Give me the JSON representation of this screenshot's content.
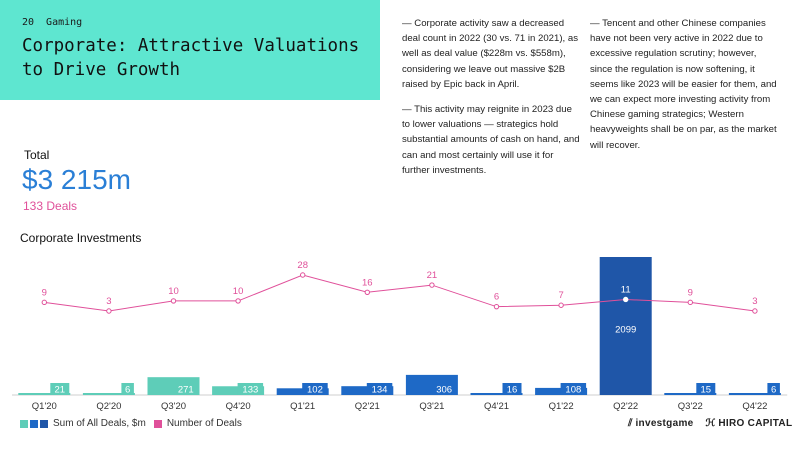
{
  "page": {
    "number": "20",
    "section": "Gaming"
  },
  "title": "Corporate: Attractive Valuations to Drive Growth",
  "notes": {
    "col1": [
      "— Corporate activity saw a decreased deal count in 2022 (30 vs. 71 in 2021), as well as deal value ($228m vs. $558m), considering we leave out massive $2B raised by Epic back in April.",
      "— This activity may reignite in 2023 due to lower valuations — strategics hold substantial amounts of cash on hand, and can and most certainly will use it for further investments."
    ],
    "col2": [
      "— Tencent and other Chinese companies have not been very active in 2022 due to excessive regulation scrutiny; however, since the regulation is now softening, it seems like 2023 will be easier for them, and we can expect more investing activity from Chinese gaming strategics; Western heavyweights shall be on par, as the market will recover."
    ]
  },
  "total": {
    "label": "Total",
    "value": "$3 215m",
    "deals": "133 Deals"
  },
  "chart_title": "Corporate Investments",
  "legend": {
    "bars_label": "Sum of All Deals, $m",
    "line_label": "Number of Deals"
  },
  "colors": {
    "header_bg": "#5ee6d0",
    "total_value": "#2a7fd6",
    "deals_pink": "#e0509a",
    "bar_2020": "#5ecdb8",
    "bar_2021_2022": "#1e69c6",
    "bar_highlight": "#1f56a8"
  },
  "logos": {
    "left": "investgame",
    "right": "HIRO CAPITAL"
  },
  "chart_data": {
    "type": "bar",
    "categories": [
      "Q1'20",
      "Q2'20",
      "Q3'20",
      "Q4'20",
      "Q1'21",
      "Q2'21",
      "Q3'21",
      "Q4'21",
      "Q1'22",
      "Q2'22",
      "Q3'22",
      "Q4'22"
    ],
    "series": [
      {
        "name": "Sum of All Deals, $m",
        "type": "bar",
        "values": [
          21,
          6,
          271,
          133,
          102,
          134,
          306,
          16,
          108,
          2099,
          15,
          6
        ]
      },
      {
        "name": "Number of Deals",
        "type": "line",
        "values": [
          9,
          3,
          10,
          10,
          28,
          16,
          21,
          6,
          7,
          11,
          9,
          3
        ]
      }
    ],
    "bar_colors": [
      "#5ecdb8",
      "#5ecdb8",
      "#5ecdb8",
      "#5ecdb8",
      "#1e69c6",
      "#1e69c6",
      "#1e69c6",
      "#1e69c6",
      "#1e69c6",
      "#1f56a8",
      "#1e69c6",
      "#1e69c6"
    ],
    "line_color": "#e0509a",
    "title": "Corporate Investments",
    "xlabel": "",
    "ylabel": ""
  }
}
